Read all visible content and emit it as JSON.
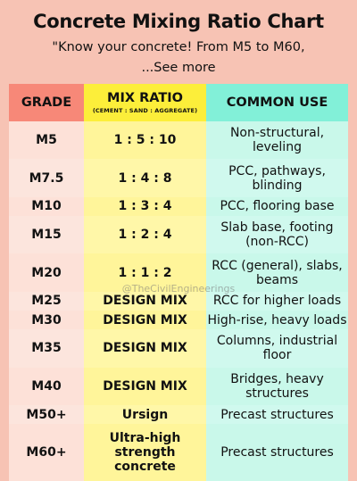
{
  "header": {
    "title": "Concrete Mixing Ratio Chart",
    "subtitle": "\"Know your concrete! From M5 to M60,",
    "see_more": "...See more"
  },
  "table": {
    "columns": {
      "grade": "GRADE",
      "ratio": "MIX RATIO",
      "ratio_note": "(CEMENT : SAND : AGGREGATE)",
      "use": "COMMON USE"
    },
    "rows": [
      {
        "grade": "M5",
        "ratio": "1 : 5 : 10",
        "use": "Non-structural, leveling"
      },
      {
        "grade": "M7.5",
        "ratio": "1 : 4 : 8",
        "use": "PCC, pathways, blinding"
      },
      {
        "grade": "M10",
        "ratio": "1 : 3 : 4",
        "use": "PCC, flooring base"
      },
      {
        "grade": "M15",
        "ratio": "1 : 2 : 4",
        "use": "Slab base, footing (non-RCC)"
      },
      {
        "grade": "M20",
        "ratio": "1 : 1 : 2",
        "use": "RCC (general), slabs, beams"
      },
      {
        "grade": "M25",
        "ratio": "DESIGN MIX",
        "use": "RCC for higher loads"
      },
      {
        "grade": "M30",
        "ratio": "DESIGN MIX",
        "use": "High-rise, heavy loads"
      },
      {
        "grade": "M35",
        "ratio": "DESIGN MIX",
        "use": "Columns, industrial floor"
      },
      {
        "grade": "M40",
        "ratio": "DESIGN MIX",
        "use": "Bridges, heavy structures"
      },
      {
        "grade": "M50+",
        "ratio": "Ursign",
        "use": "Precast structures"
      },
      {
        "grade": "M60+",
        "ratio": "Ultra-high strength concrete",
        "use": "Precast structures"
      }
    ]
  },
  "watermark": "@TheCivilEngineerings",
  "colors": {
    "background": "#f7c3b4",
    "grade_header": "#f78878",
    "ratio_header": "#fcee3a",
    "use_header": "#82f0d8"
  }
}
